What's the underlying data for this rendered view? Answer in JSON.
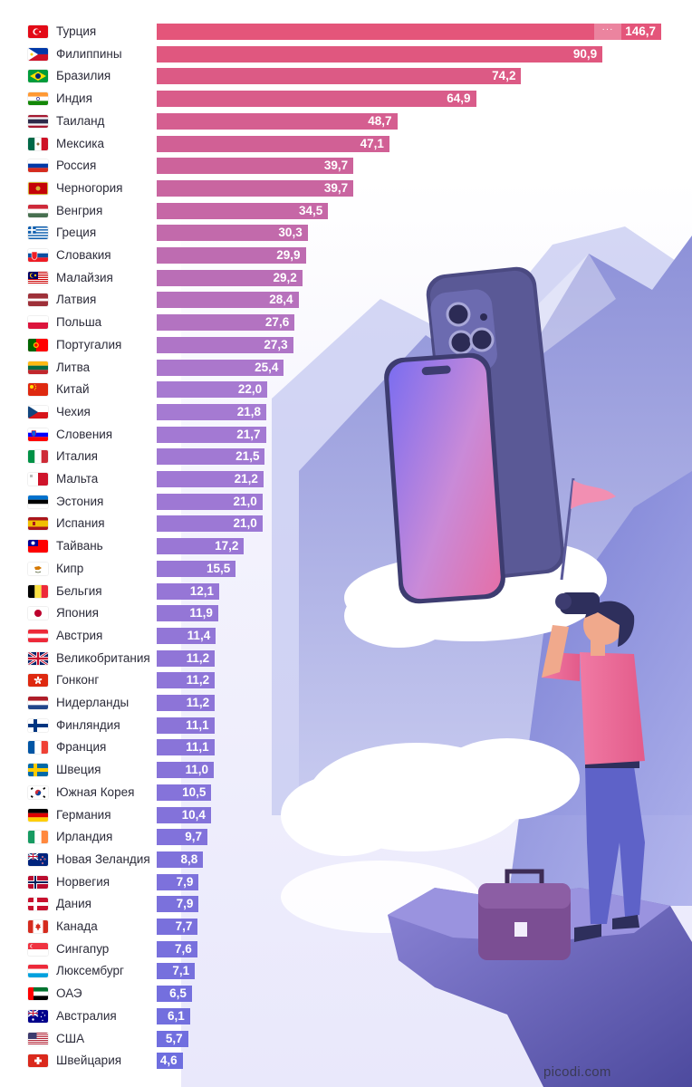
{
  "source": "picodi.com",
  "colors": {
    "bar_top": "#e4557a",
    "bar_mid": "#a77ad2",
    "bar_bottom": "#6e6edf"
  },
  "chart_data": {
    "type": "bar",
    "orientation": "horizontal",
    "xlim": [
      0,
      146.7
    ],
    "grid": false,
    "categories": [
      "Турция",
      "Филиппины",
      "Бразилия",
      "Индия",
      "Таиланд",
      "Мексика",
      "Россия",
      "Черногория",
      "Венгрия",
      "Греция",
      "Словакия",
      "Малайзия",
      "Латвия",
      "Польша",
      "Португалия",
      "Литва",
      "Китай",
      "Чехия",
      "Словения",
      "Италия",
      "Мальта",
      "Эстония",
      "Испания",
      "Тайвань",
      "Кипр",
      "Бельгия",
      "Япония",
      "Австрия",
      "Великобритания",
      "Гонконг",
      "Нидерланды",
      "Финляндия",
      "Франция",
      "Швеция",
      "Южная Корея",
      "Германия",
      "Ирландия",
      "Новая Зеландия",
      "Норвегия",
      "Дания",
      "Канада",
      "Сингапур",
      "Люксембург",
      "ОАЭ",
      "Австралия",
      "США",
      "Швейцария"
    ],
    "values": [
      146.7,
      90.9,
      74.2,
      64.9,
      48.7,
      47.1,
      39.7,
      39.7,
      34.5,
      30.3,
      29.9,
      29.2,
      28.4,
      27.6,
      27.3,
      25.4,
      22.0,
      21.8,
      21.7,
      21.5,
      21.2,
      21.0,
      21.0,
      17.2,
      15.5,
      12.1,
      11.9,
      11.4,
      11.2,
      11.2,
      11.2,
      11.1,
      11.1,
      11.0,
      10.5,
      10.4,
      9.7,
      8.8,
      7.9,
      7.9,
      7.7,
      7.6,
      7.1,
      6.5,
      6.1,
      5.7,
      4.6
    ],
    "value_labels": [
      "146,7",
      "90,9",
      "74,2",
      "64,9",
      "48,7",
      "47,1",
      "39,7",
      "39,7",
      "34,5",
      "30,3",
      "29,9",
      "29,2",
      "28,4",
      "27,6",
      "27,3",
      "25,4",
      "22,0",
      "21,8",
      "21,7",
      "21,5",
      "21,2",
      "21,0",
      "21,0",
      "17,2",
      "15,5",
      "12,1",
      "11,9",
      "11,4",
      "11,2",
      "11,2",
      "11,2",
      "11,1",
      "11,1",
      "11,0",
      "10,5",
      "10,4",
      "9,7",
      "8,8",
      "7,9",
      "7,9",
      "7,7",
      "7,6",
      "7,1",
      "6,5",
      "6,1",
      "5,7",
      "4,6"
    ],
    "flags": [
      "tr",
      "ph",
      "br",
      "in",
      "th",
      "mx",
      "ru",
      "me",
      "hu",
      "gr",
      "sk",
      "my",
      "lv",
      "pl",
      "pt",
      "lt",
      "cn",
      "cz",
      "si",
      "it",
      "mt",
      "ee",
      "es",
      "tw",
      "cy",
      "be",
      "jp",
      "at",
      "gb",
      "hk",
      "nl",
      "fi",
      "fr",
      "se",
      "kr",
      "de",
      "ie",
      "nz",
      "no",
      "dk",
      "ca",
      "sg",
      "lu",
      "ae",
      "au",
      "us",
      "ch"
    ],
    "truncated_first_bar": true
  }
}
